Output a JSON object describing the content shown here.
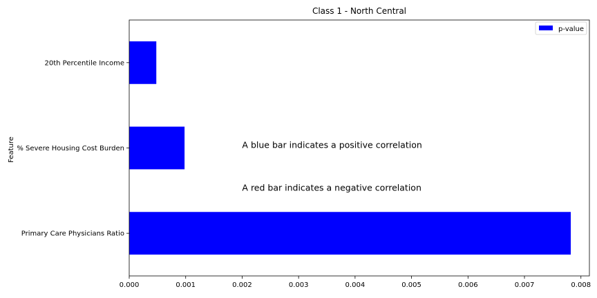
{
  "chart_data": {
    "type": "bar",
    "orientation": "horizontal",
    "title": "Class 1 - North Central",
    "xlabel": "",
    "ylabel": "Feature",
    "categories": [
      "Primary Care Physicians Ratio",
      "% Severe Housing Cost Burden",
      "20th Percentile Income"
    ],
    "series": [
      {
        "name": "p-value",
        "color": "#0000ff",
        "values": [
          0.00782,
          0.00098,
          0.00048
        ]
      }
    ],
    "xlim": [
      0,
      0.00815
    ],
    "xticks": [
      "0.000",
      "0.001",
      "0.002",
      "0.003",
      "0.004",
      "0.005",
      "0.006",
      "0.007",
      "0.008"
    ],
    "xtick_values": [
      0,
      0.001,
      0.002,
      0.003,
      0.004,
      0.005,
      0.006,
      0.007,
      0.008
    ],
    "grid": false,
    "legend_position": "top-right",
    "annotations": [
      {
        "text": "A blue bar indicates a positive correlation",
        "x": 0.002,
        "category_y": 1.0
      },
      {
        "text": "A red bar indicates a negative correlation",
        "x": 0.002,
        "category_y": 0.5
      }
    ]
  }
}
